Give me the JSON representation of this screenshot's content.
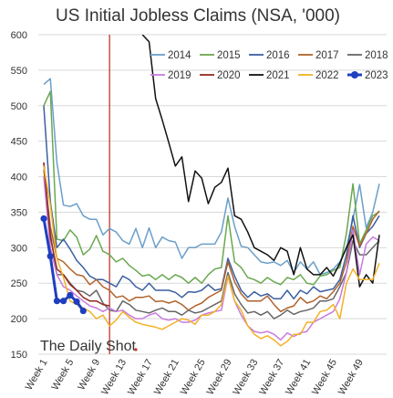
{
  "chart_data": {
    "type": "line",
    "title": "US Initial Jobless Claims (NSA, '000)",
    "xlabel": "",
    "ylabel": "",
    "ylim": [
      150,
      600
    ],
    "y_ticks": [
      150,
      200,
      250,
      300,
      350,
      400,
      450,
      500,
      550,
      600
    ],
    "xlim": [
      1,
      52
    ],
    "x_tick_weeks": [
      1,
      5,
      9,
      13,
      17,
      21,
      25,
      29,
      33,
      37,
      41,
      45,
      49
    ],
    "x_tick_labels": [
      "Week 1",
      "Week 5",
      "Week 9",
      "Week 13",
      "Week 17",
      "Week 21",
      "Week 25",
      "Week 29",
      "Week 33",
      "Week 37",
      "Week 41",
      "Week 45",
      "Week 49"
    ],
    "grid": "horizontal",
    "legend_position": "top-right",
    "watermark": "The Daily Shot",
    "vertical_marker_week": 11,
    "vertical_marker_color": "#c0392b",
    "series": [
      {
        "name": "2014",
        "color": "#6a9fca",
        "width": 1.5,
        "values": [
          530,
          538,
          420,
          360,
          358,
          362,
          345,
          340,
          340,
          318,
          327,
          322,
          310,
          305,
          327,
          300,
          328,
          300,
          315,
          310,
          308,
          285,
          300,
          300,
          305,
          305,
          305,
          322,
          370,
          330,
          302,
          300,
          290,
          280,
          278,
          280,
          275,
          282,
          265,
          280,
          270,
          280,
          262,
          265,
          270,
          280,
          300,
          340,
          389,
          328,
          350,
          390
        ]
      },
      {
        "name": "2015",
        "color": "#6aa84f",
        "width": 1.5,
        "values": [
          500,
          520,
          312,
          310,
          325,
          315,
          290,
          298,
          317,
          295,
          290,
          280,
          285,
          275,
          268,
          260,
          262,
          255,
          262,
          255,
          262,
          258,
          250,
          258,
          250,
          262,
          270,
          272,
          345,
          280,
          272,
          258,
          255,
          250,
          258,
          252,
          248,
          258,
          255,
          262,
          250,
          248,
          260,
          262,
          268,
          272,
          320,
          390,
          305,
          325,
          345,
          350
        ]
      },
      {
        "name": "2016",
        "color": "#3a5fa0",
        "width": 1.5,
        "values": [
          500,
          365,
          300,
          312,
          298,
          282,
          272,
          260,
          255,
          255,
          250,
          245,
          260,
          255,
          245,
          240,
          250,
          240,
          240,
          240,
          237,
          230,
          238,
          237,
          240,
          248,
          240,
          242,
          285,
          260,
          240,
          230,
          238,
          232,
          235,
          228,
          228,
          240,
          228,
          240,
          235,
          245,
          238,
          240,
          242,
          255,
          290,
          345,
          300,
          320,
          330,
          345
        ]
      },
      {
        "name": "2017",
        "color": "#b0622b",
        "width": 1.5,
        "values": [
          410,
          330,
          285,
          280,
          270,
          262,
          260,
          248,
          255,
          245,
          240,
          230,
          232,
          225,
          230,
          230,
          232,
          224,
          225,
          222,
          225,
          220,
          212,
          218,
          222,
          230,
          235,
          240,
          280,
          252,
          235,
          225,
          225,
          225,
          232,
          220,
          210,
          215,
          218,
          230,
          222,
          225,
          232,
          228,
          238,
          250,
          280,
          330,
          302,
          320,
          340,
          352
        ]
      },
      {
        "name": "2018",
        "color": "#666666",
        "width": 1.5,
        "values": [
          420,
          320,
          262,
          262,
          250,
          240,
          238,
          232,
          240,
          222,
          212,
          210,
          225,
          220,
          212,
          210,
          208,
          212,
          215,
          210,
          210,
          205,
          212,
          208,
          210,
          215,
          220,
          225,
          265,
          235,
          220,
          208,
          210,
          205,
          210,
          200,
          205,
          212,
          206,
          210,
          212,
          215,
          225,
          225,
          228,
          245,
          265,
          310,
          290,
          290,
          300,
          310
        ]
      },
      {
        "name": "2019",
        "color": "#c77be0",
        "width": 1.5,
        "values": [
          400,
          300,
          262,
          245,
          240,
          232,
          225,
          218,
          215,
          210,
          215,
          210,
          212,
          205,
          200,
          200,
          205,
          208,
          200,
          198,
          200,
          195,
          195,
          198,
          205,
          208,
          210,
          212,
          260,
          225,
          205,
          190,
          182,
          180,
          182,
          178,
          170,
          180,
          175,
          180,
          182,
          195,
          200,
          205,
          210,
          228,
          265,
          325,
          262,
          305,
          315,
          310
        ]
      },
      {
        "name": "2020",
        "color": "#922b21",
        "width": 1.5,
        "values": [
          420,
          315,
          270,
          262,
          248,
          240,
          230,
          225,
          225,
          220,
          218
        ]
      },
      {
        "name": "2021",
        "color": "#111111",
        "width": 1.5,
        "values": [
          null,
          null,
          null,
          null,
          null,
          null,
          null,
          null,
          null,
          null,
          null,
          null,
          null,
          null,
          null,
          600,
          590,
          510,
          480,
          448,
          415,
          428,
          365,
          408,
          398,
          362,
          385,
          392,
          412,
          345,
          340,
          322,
          300,
          295,
          290,
          282,
          300,
          295,
          262,
          300,
          270,
          262,
          262,
          272,
          260,
          278,
          300,
          318,
          245,
          262,
          250,
          318
        ]
      },
      {
        "name": "2022",
        "color": "#f2b227",
        "width": 1.5,
        "values": [
          415,
          360,
          285,
          258,
          225,
          220,
          215,
          210,
          200,
          205,
          190,
          198,
          210,
          202,
          195,
          192,
          190,
          188,
          185,
          190,
          195,
          200,
          198,
          192,
          205,
          205,
          210,
          220,
          260,
          225,
          212,
          190,
          178,
          172,
          176,
          170,
          162,
          168,
          178,
          178,
          195,
          195,
          210,
          212,
          220,
          200,
          250,
          270,
          255,
          255,
          255,
          278
        ]
      },
      {
        "name": "2023",
        "color": "#1f3fbf",
        "width": 3,
        "markers": true,
        "values": [
          341,
          288,
          225,
          225,
          233,
          224,
          211
        ]
      }
    ]
  }
}
